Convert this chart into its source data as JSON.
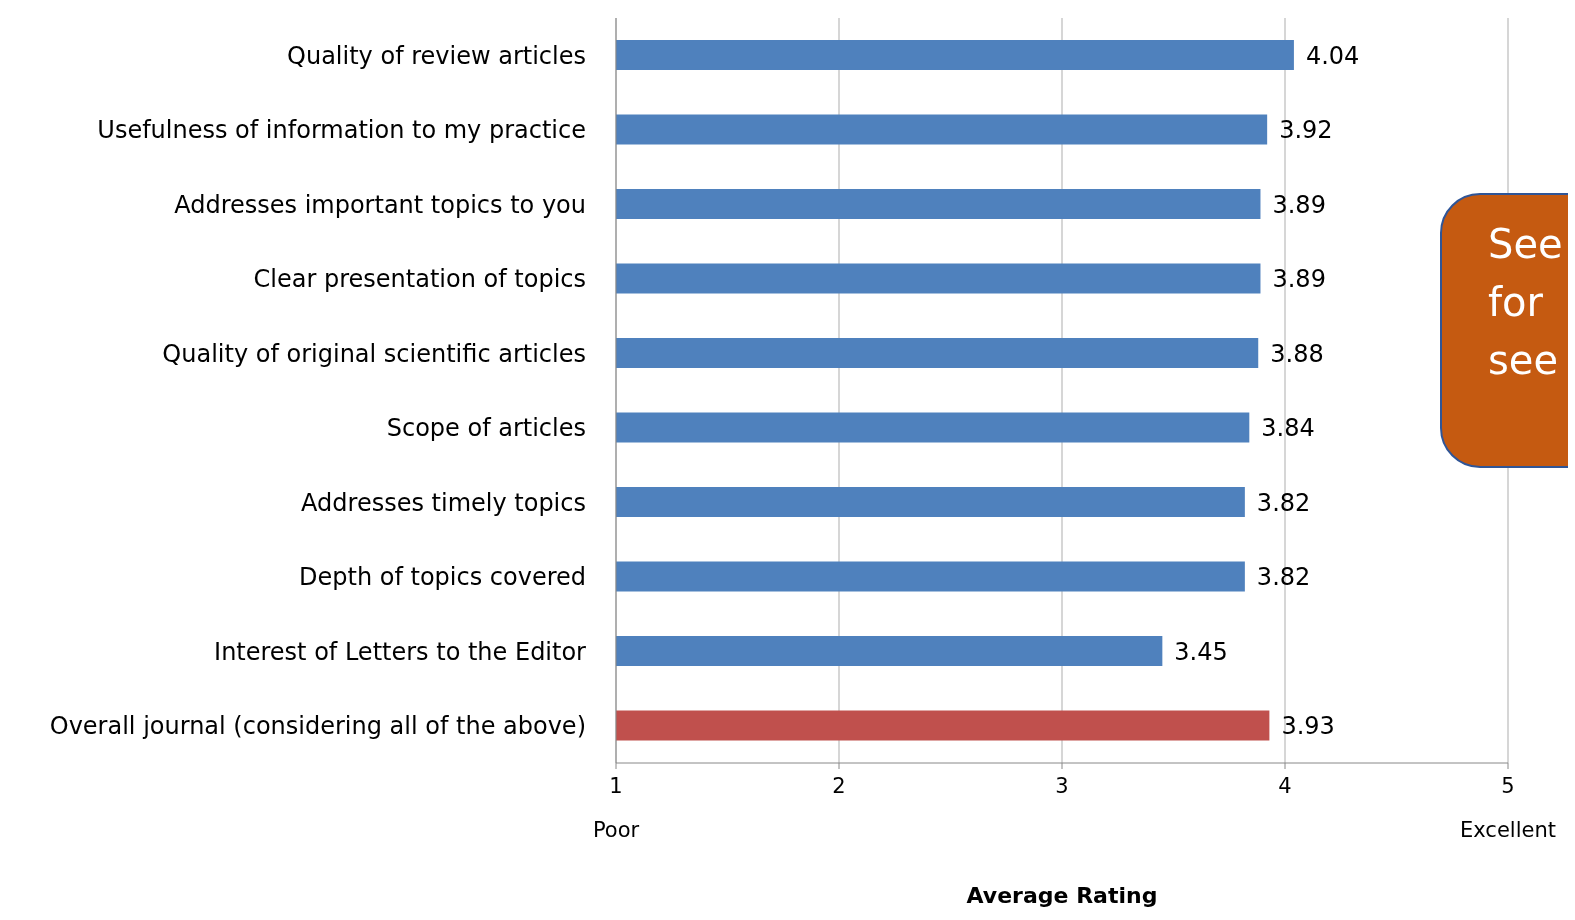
{
  "chart_data": {
    "type": "bar",
    "orientation": "horizontal",
    "xlabel": "Average Rating",
    "categories": [
      "Quality of review articles",
      "Usefulness of information to my practice",
      "Addresses important topics to you",
      "Clear presentation of topics",
      "Quality of original scientific articles",
      "Scope of articles",
      "Addresses timely topics",
      "Depth of topics covered",
      "Interest of Letters to the Editor",
      "Overall journal (considering all of the above)"
    ],
    "values": [
      4.04,
      3.92,
      3.89,
      3.89,
      3.88,
      3.84,
      3.82,
      3.82,
      3.45,
      3.93
    ],
    "colors": [
      "#4f81bd",
      "#4f81bd",
      "#4f81bd",
      "#4f81bd",
      "#4f81bd",
      "#4f81bd",
      "#4f81bd",
      "#4f81bd",
      "#4f81bd",
      "#c0504d"
    ],
    "data_labels": true,
    "xlim": [
      1,
      5
    ],
    "xticks": [
      {
        "value": 1,
        "label": "1\nPoor"
      },
      2,
      3,
      4,
      {
        "value": 5,
        "label": "5\nExcellent"
      }
    ],
    "grid": "x",
    "legend": false,
    "annotations": [
      "See\nfor\nsee"
    ]
  }
}
